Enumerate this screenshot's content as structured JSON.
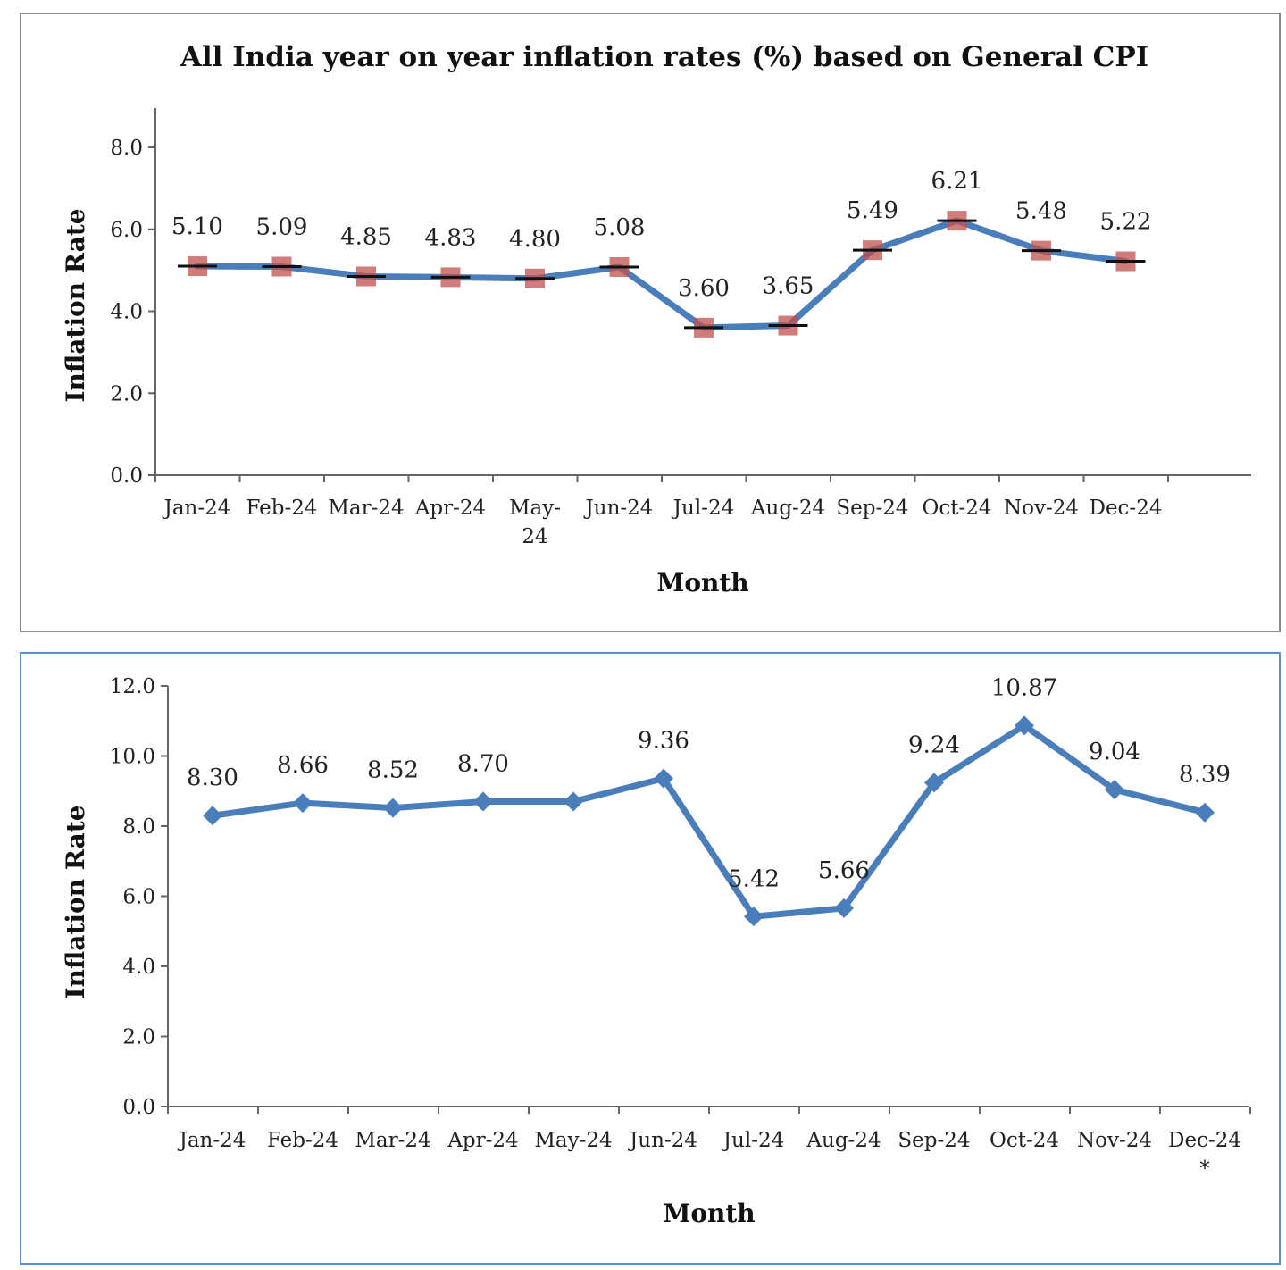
{
  "chart_data": [
    {
      "type": "line",
      "title": "All India year on year inflation rates (%) based on General CPI",
      "xlabel": "Month",
      "ylabel": "Inflation Rate",
      "categories": [
        "Jan-24",
        "Feb-24",
        "Mar-24",
        "Apr-24",
        "May-24",
        "Jun-24",
        "Jul-24",
        "Aug-24",
        "Sep-24",
        "Oct-24",
        "Nov-24",
        "Dec-24"
      ],
      "category_lines": [
        [
          "Jan-24"
        ],
        [
          "Feb-24"
        ],
        [
          "Mar-24"
        ],
        [
          "Apr-24"
        ],
        [
          "May-",
          "24"
        ],
        [
          "Jun-24"
        ],
        [
          "Jul-24"
        ],
        [
          "Aug-24"
        ],
        [
          "Sep-24"
        ],
        [
          "Oct-24"
        ],
        [
          "Nov-24"
        ],
        [
          "Dec-24"
        ]
      ],
      "series": [
        {
          "values": [
            5.1,
            5.09,
            4.85,
            4.83,
            4.8,
            5.08,
            3.6,
            3.65,
            5.49,
            6.21,
            5.48,
            5.22
          ],
          "labels": [
            "5.10",
            "5.09",
            "4.85",
            "4.83",
            "4.80",
            "5.08",
            "3.60",
            "3.65",
            "5.49",
            "6.21",
            "5.48",
            "5.22"
          ]
        }
      ],
      "ylim": [
        0,
        8
      ],
      "yticks": [
        "0.0",
        "2.0",
        "4.0",
        "6.0",
        "8.0"
      ],
      "grid": false,
      "marker": "square-with-dash",
      "colors": {
        "line": "#4a7ebb",
        "marker_fill": "#c0504d",
        "marker_dash": "#111111",
        "axis": "#666666"
      }
    },
    {
      "type": "line",
      "title": "",
      "xlabel": "Month",
      "ylabel": "Inflation Rate",
      "categories": [
        "Jan-24",
        "Feb-24",
        "Mar-24",
        "Apr-24",
        "May-24",
        "Jun-24",
        "Jul-24",
        "Aug-24",
        "Sep-24",
        "Oct-24",
        "Nov-24",
        "Dec-24"
      ],
      "category_lines": [
        [
          "Jan-24"
        ],
        [
          "Feb-24"
        ],
        [
          "Mar-24"
        ],
        [
          "Apr-24"
        ],
        [
          "May-24"
        ],
        [
          "Jun-24"
        ],
        [
          "Jul-24"
        ],
        [
          "Aug-24"
        ],
        [
          "Sep-24"
        ],
        [
          "Oct-24"
        ],
        [
          "Nov-24"
        ],
        [
          "Dec-24",
          "*"
        ]
      ],
      "series": [
        {
          "values": [
            8.3,
            8.66,
            8.52,
            8.7,
            8.7,
            9.36,
            5.42,
            5.66,
            9.24,
            10.87,
            9.04,
            8.39
          ],
          "labels": [
            "8.30",
            "8.66",
            "8.52",
            "8.70",
            "",
            "9.36",
            "5.42",
            "5.66",
            "9.24",
            "10.87",
            "9.04",
            "8.39"
          ]
        }
      ],
      "ylim": [
        0,
        12
      ],
      "yticks": [
        "0.0",
        "2.0",
        "4.0",
        "6.0",
        "8.0",
        "10.0",
        "12.0"
      ],
      "grid": false,
      "marker": "diamond",
      "colors": {
        "line": "#4a7ebb",
        "marker_fill": "#4a7ebb",
        "axis": "#666666"
      }
    }
  ]
}
